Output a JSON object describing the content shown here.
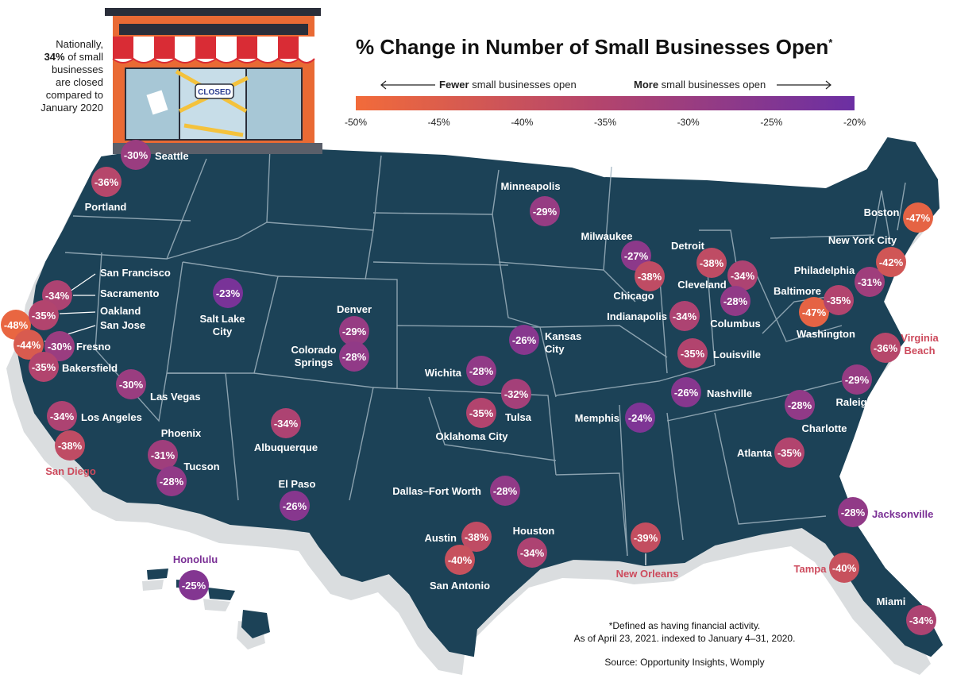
{
  "title": "% Change in Number of Small Businesses Open",
  "title_mark": "*",
  "national_note": {
    "line1": "Nationally,",
    "line2_bold": "34%",
    "line2_rest": " of small",
    "line3": "businesses",
    "line4": "are closed",
    "line5": "compared to",
    "line6": "January 2020"
  },
  "store_sign": "CLOSED",
  "legend": {
    "fewer_bold": "Fewer",
    "fewer_rest": " small businesses open",
    "more_bold": "More",
    "more_rest": " small businesses open",
    "ticks": [
      "-50%",
      "-45%",
      "-40%",
      "-35%",
      "-30%",
      "-25%",
      "-20%"
    ],
    "tick_values": [
      -50,
      -45,
      -40,
      -35,
      -30,
      -25,
      -20
    ],
    "color_low": "#f26b3a",
    "color_mid": "#b2446e",
    "color_high": "#6b2fa3"
  },
  "footnote": {
    "line1": "*Defined as having financial activity.",
    "line2": "As of April 23, 2021. indexed to January 4–31, 2020.",
    "source": "Source: Opportunity Insights, Womply"
  },
  "colors": {
    "map_fill": "#1c4257",
    "map_border": "#9fb3bf",
    "shadow": "#dadddf",
    "orange": "#f26b3a",
    "red": "#cd4a5c",
    "magenta": "#a63e78",
    "purple": "#7a2f95"
  },
  "cities": [
    {
      "name": "Seattle",
      "value": "-30%",
      "v": -30
    },
    {
      "name": "Portland",
      "value": "-36%",
      "v": -36
    },
    {
      "name": "San Francisco",
      "value": "-48%",
      "v": -48
    },
    {
      "name": "Sacramento",
      "value": "-34%",
      "v": -34
    },
    {
      "name": "Oakland",
      "value": "-35%",
      "v": -35
    },
    {
      "name": "San Jose",
      "value": "-44%",
      "v": -44
    },
    {
      "name": "Fresno",
      "value": "-30%",
      "v": -30
    },
    {
      "name": "Bakersfield",
      "value": "-35%",
      "v": -35
    },
    {
      "name": "Las Vegas",
      "value": "-30%",
      "v": -30
    },
    {
      "name": "Los Angeles",
      "value": "-34%",
      "v": -34
    },
    {
      "name": "San Diego",
      "value": "-38%",
      "v": -38
    },
    {
      "name": "Phoenix",
      "value": "-31%",
      "v": -31
    },
    {
      "name": "Tucson",
      "value": "-28%",
      "v": -28
    },
    {
      "name": "Salt Lake City",
      "value": "-23%",
      "v": -23
    },
    {
      "name": "Denver",
      "value": "-29%",
      "v": -29
    },
    {
      "name": "Colorado Springs",
      "value": "-28%",
      "v": -28
    },
    {
      "name": "Albuquerque",
      "value": "-34%",
      "v": -34
    },
    {
      "name": "El Paso",
      "value": "-26%",
      "v": -26
    },
    {
      "name": "Honolulu",
      "value": "-25%",
      "v": -25
    },
    {
      "name": "Minneapolis",
      "value": "-29%",
      "v": -29
    },
    {
      "name": "Kansas City",
      "value": "-26%",
      "v": -26
    },
    {
      "name": "Wichita",
      "value": "-28%",
      "v": -28
    },
    {
      "name": "Tulsa",
      "value": "-32%",
      "v": -32
    },
    {
      "name": "Oklahoma City",
      "value": "-35%",
      "v": -35
    },
    {
      "name": "Dallas–Fort Worth",
      "value": "-28%",
      "v": -28
    },
    {
      "name": "Austin",
      "value": "-38%",
      "v": -38
    },
    {
      "name": "San Antonio",
      "value": "-40%",
      "v": -40
    },
    {
      "name": "Houston",
      "value": "-34%",
      "v": -34
    },
    {
      "name": "New Orleans",
      "value": "-39%",
      "v": -39
    },
    {
      "name": "Memphis",
      "value": "-24%",
      "v": -24
    },
    {
      "name": "Nashville",
      "value": "-26%",
      "v": -26
    },
    {
      "name": "Milwaukee",
      "value": "-27%",
      "v": -27
    },
    {
      "name": "Chicago",
      "value": "-38%",
      "v": -38
    },
    {
      "name": "Detroit",
      "value": "-38%",
      "v": -38
    },
    {
      "name": "Cleveland",
      "value": "-34%",
      "v": -34
    },
    {
      "name": "Columbus",
      "value": "-28%",
      "v": -28
    },
    {
      "name": "Indianapolis",
      "value": "-34%",
      "v": -34
    },
    {
      "name": "Louisville",
      "value": "-35%",
      "v": -35
    },
    {
      "name": "Atlanta",
      "value": "-35%",
      "v": -35
    },
    {
      "name": "Charlotte",
      "value": "-28%",
      "v": -28
    },
    {
      "name": "Raleigh",
      "value": "-29%",
      "v": -29
    },
    {
      "name": "Virginia Beach",
      "value": "-36%",
      "v": -36
    },
    {
      "name": "Washington",
      "value": "-47%",
      "v": -47
    },
    {
      "name": "Baltimore",
      "value": "-35%",
      "v": -35
    },
    {
      "name": "Philadelphia",
      "value": "-31%",
      "v": -31
    },
    {
      "name": "New York City",
      "value": "-42%",
      "v": -42
    },
    {
      "name": "Boston",
      "value": "-47%",
      "v": -47
    },
    {
      "name": "Jacksonville",
      "value": "-28%",
      "v": -28
    },
    {
      "name": "Tampa",
      "value": "-40%",
      "v": -40
    },
    {
      "name": "Miami",
      "value": "-34%",
      "v": -34
    }
  ]
}
